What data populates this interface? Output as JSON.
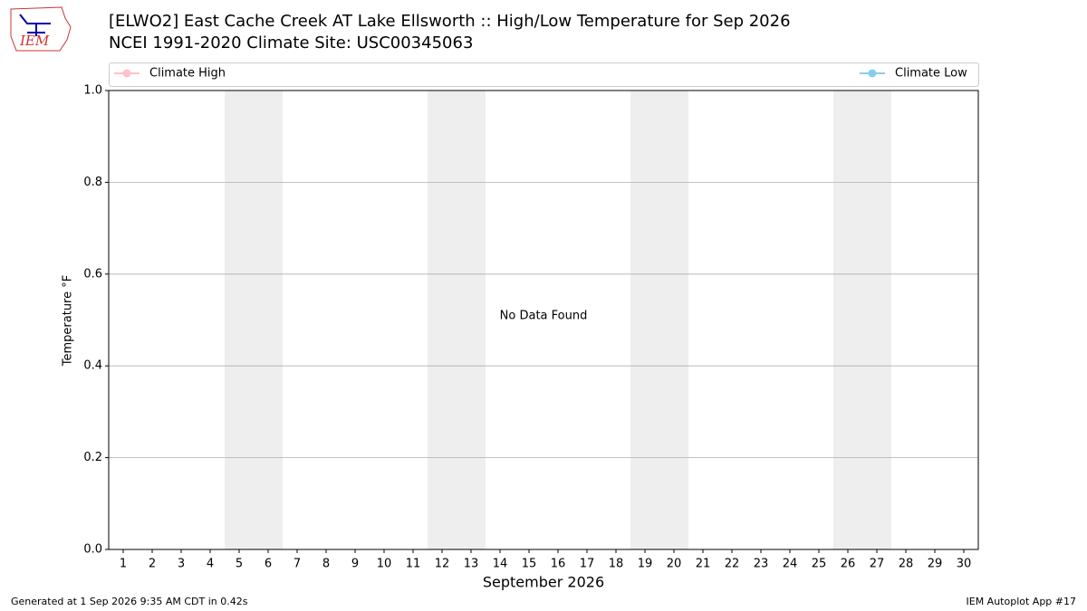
{
  "chart_data": {
    "type": "line",
    "title": "[ELWO2] East Cache Creek  AT Lake Ellsworth :: High/Low Temperature for Sep 2026",
    "subtitle": "NCEI 1991-2020 Climate Site: USC00345063",
    "logo_text": "IEM",
    "xlabel": "September 2026",
    "ylabel": "Temperature °F",
    "annotation": "No Data Found",
    "footer_left": "Generated at 1 Sep 2026 9:35 AM CDT in 0.42s",
    "footer_right": "IEM Autoplot App #17",
    "x": [],
    "series": [
      {
        "name": "Climate High",
        "color": "#ffc0cb",
        "values": []
      },
      {
        "name": "Climate Low",
        "color": "#87ceeb",
        "values": []
      }
    ],
    "shaded_spans": [
      [
        4.5,
        6.5
      ],
      [
        11.5,
        13.5
      ],
      [
        18.5,
        20.5
      ],
      [
        25.5,
        27.5
      ]
    ],
    "shade_color": "#eeeeee",
    "xlim": [
      0.5,
      30.5
    ],
    "xticks": [
      1,
      2,
      3,
      4,
      5,
      6,
      7,
      8,
      9,
      10,
      11,
      12,
      13,
      14,
      15,
      16,
      17,
      18,
      19,
      20,
      21,
      22,
      23,
      24,
      25,
      26,
      27,
      28,
      29,
      30
    ],
    "ylim": [
      0,
      1
    ],
    "yticks": [
      {
        "value": 0,
        "label": "0.0"
      },
      0.2,
      0.4,
      0.6,
      0.8,
      {
        "value": 1,
        "label": "1.0"
      }
    ],
    "grid": true
  }
}
